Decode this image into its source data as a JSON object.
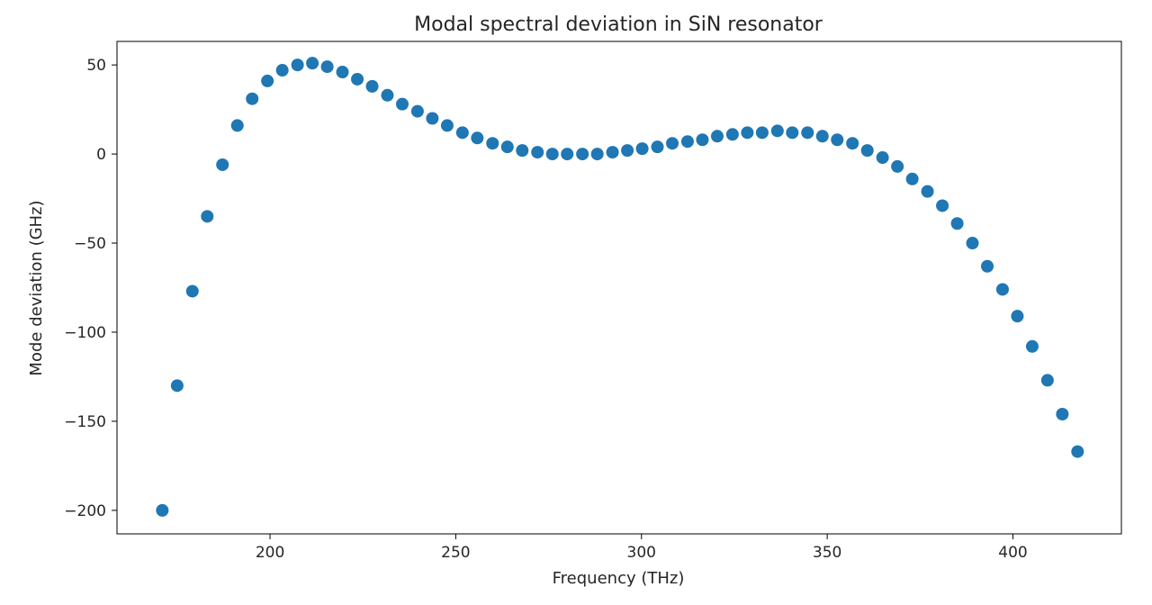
{
  "chart_data": {
    "type": "scatter",
    "title": "Modal spectral deviation in SiN resonator",
    "xlabel": "Frequency (THz)",
    "ylabel": "Mode deviation (GHz)",
    "xlim": [
      158.8,
      429.2
    ],
    "ylim": [
      -213.2,
      63.2
    ],
    "xticks": [
      200,
      250,
      300,
      350,
      400
    ],
    "xtick_labels": [
      "200",
      "250",
      "300",
      "350",
      "400"
    ],
    "yticks": [
      50,
      0,
      -50,
      -100,
      -150,
      -200
    ],
    "ytick_labels": [
      "50",
      "0",
      "−50",
      "−100",
      "−150",
      "−200"
    ],
    "grid": false,
    "marker_color": "#1f77b4",
    "series": [
      {
        "name": "modes",
        "x": [
          171.0,
          175.0,
          179.1,
          183.1,
          187.2,
          191.2,
          195.2,
          199.3,
          203.3,
          207.4,
          211.4,
          215.4,
          219.5,
          223.5,
          227.5,
          231.6,
          235.6,
          239.7,
          243.7,
          247.7,
          251.8,
          255.8,
          259.9,
          263.9,
          267.9,
          272.0,
          276.0,
          280.0,
          284.1,
          288.1,
          292.2,
          296.2,
          300.2,
          304.3,
          308.3,
          312.4,
          316.4,
          320.4,
          324.5,
          328.5,
          332.5,
          336.6,
          340.6,
          344.7,
          348.7,
          352.7,
          356.8,
          360.8,
          364.9,
          368.9,
          372.9,
          377.0,
          381.0,
          385.0,
          389.1,
          393.1,
          397.2,
          401.2,
          405.2,
          409.3,
          413.3,
          417.4
        ],
        "y": [
          -200,
          -130,
          -77,
          -35,
          -6,
          16,
          31,
          41,
          47,
          50,
          51,
          49,
          46,
          42,
          38,
          33,
          28,
          24,
          20,
          16,
          12,
          9,
          6,
          4,
          2,
          1,
          0,
          0,
          0,
          0,
          1,
          2,
          3,
          4,
          6,
          7,
          8,
          10,
          11,
          12,
          12,
          13,
          12,
          12,
          10,
          8,
          6,
          2,
          -2,
          -7,
          -14,
          -21,
          -29,
          -39,
          -50,
          -63,
          -76,
          -91,
          -108,
          -127,
          -146,
          -167
        ]
      }
    ]
  }
}
